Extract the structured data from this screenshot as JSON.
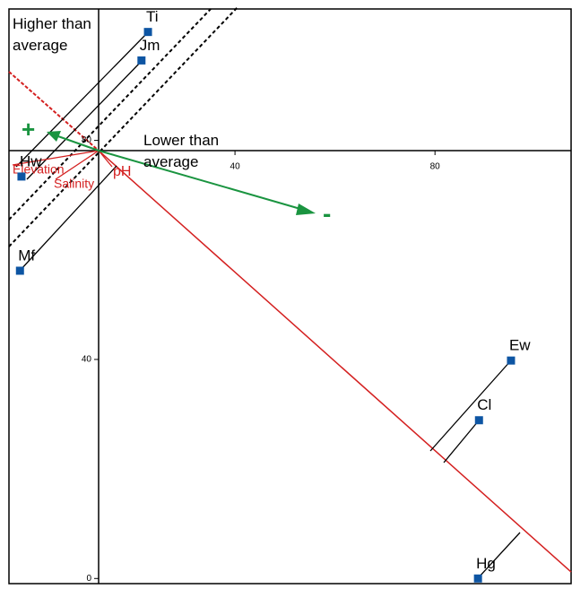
{
  "chart_data": {
    "type": "scatter",
    "point_labels": [
      "Ti",
      "Jm",
      "Hw",
      "Mf",
      "Ew",
      "Cl",
      "Hg"
    ],
    "x": [
      22.6,
      21.3,
      -2.7,
      -3.0,
      95.2,
      88.8,
      88.6
    ],
    "values": [
      99.8,
      94.6,
      73.4,
      56.2,
      39.8,
      28.9,
      0
    ],
    "color": "#0d55a3",
    "xlim": [
      -5.2,
      107.4
    ],
    "ylim": [
      -1.1,
      104
    ],
    "xticks": [
      40,
      80
    ],
    "yticks": [
      0,
      40,
      80
    ],
    "annotations": {
      "higher": "Higher than average",
      "lower": "Lower than average",
      "plus": "+",
      "minus": "-",
      "elevation": "Elevation",
      "salinity": "Salinity",
      "ph": "pH"
    }
  }
}
